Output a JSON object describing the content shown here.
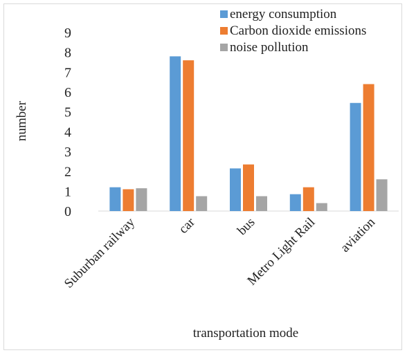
{
  "chart_data": {
    "type": "bar",
    "title": "",
    "xlabel": "transportation mode",
    "ylabel": "number",
    "ylim": [
      0,
      9
    ],
    "yticks": [
      0,
      1,
      2,
      3,
      4,
      5,
      6,
      7,
      8,
      9
    ],
    "grid": false,
    "legend_position": "top-right",
    "categories": [
      "Suburban railway",
      "car",
      "bus",
      "Metro Light Rail",
      "aviation"
    ],
    "series": [
      {
        "name": "energy consumption",
        "color": "#5b9bd5",
        "values": [
          1.2,
          7.8,
          2.15,
          0.85,
          5.45
        ]
      },
      {
        "name": "Carbon dioxide emissions",
        "color": "#ed7d31",
        "values": [
          1.1,
          7.6,
          2.35,
          1.2,
          6.4
        ]
      },
      {
        "name": "noise pollution",
        "color": "#a5a5a5",
        "values": [
          1.15,
          0.75,
          0.75,
          0.4,
          1.6
        ]
      }
    ]
  }
}
